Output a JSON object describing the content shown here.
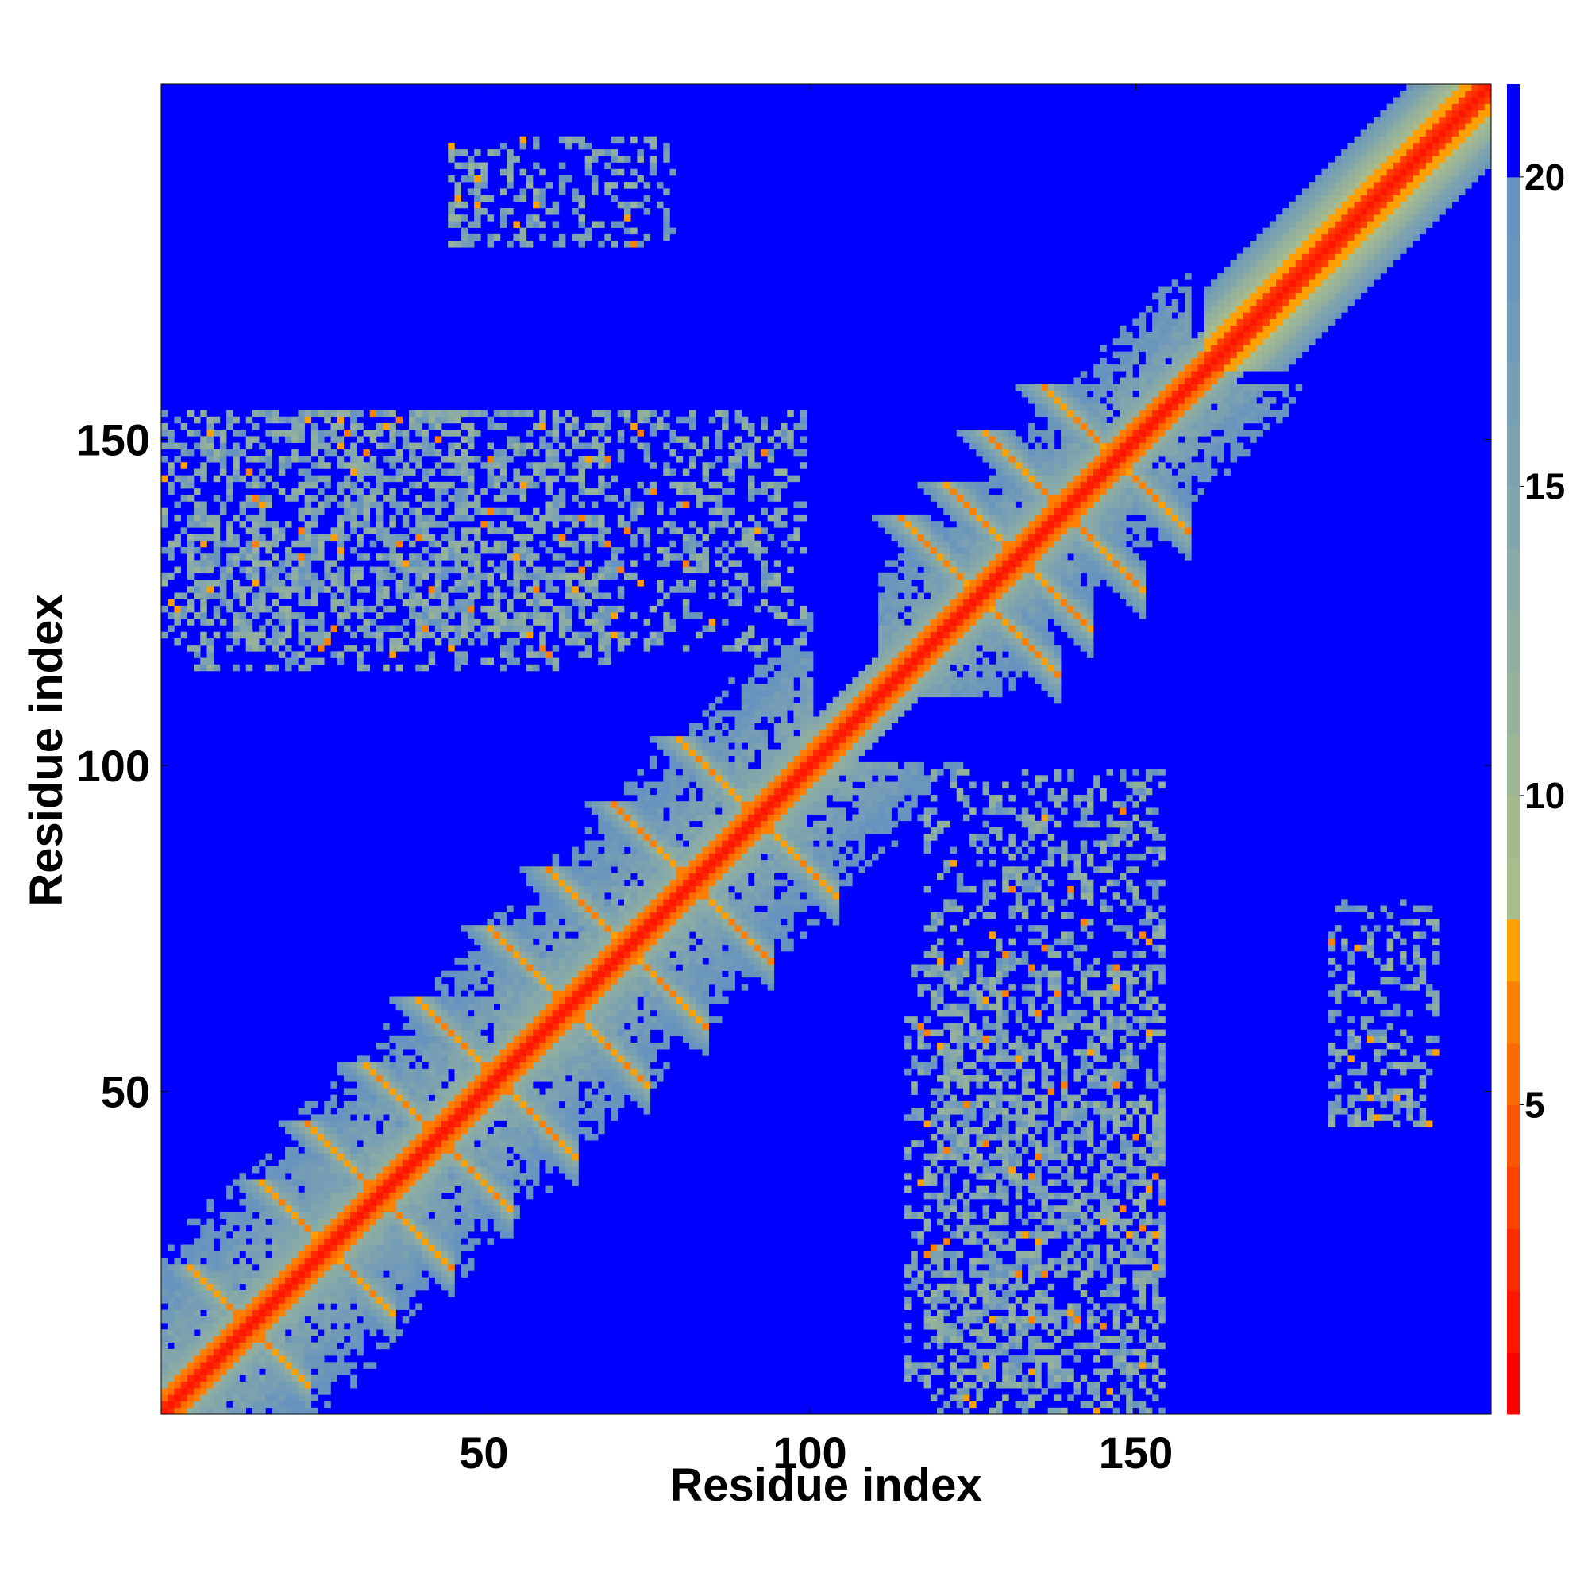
{
  "chart_data": {
    "type": "heatmap",
    "title": "",
    "xlabel": "Residue index",
    "ylabel": "Residue index",
    "n_residues": 204,
    "xlim": [
      1,
      204
    ],
    "ylim": [
      1,
      204
    ],
    "x_ticks": [
      50,
      100,
      150
    ],
    "y_ticks": [
      50,
      100,
      150
    ],
    "grid": false,
    "colorbar": {
      "range": [
        0,
        21.5
      ],
      "ticks": [
        5,
        10,
        15,
        20
      ],
      "levels": [
        {
          "max": 1.0,
          "color": "#ff0000"
        },
        {
          "max": 2.0,
          "color": "#ff1500"
        },
        {
          "max": 3.0,
          "color": "#ff2a00"
        },
        {
          "max": 4.0,
          "color": "#ff4000"
        },
        {
          "max": 5.0,
          "color": "#ff5500"
        },
        {
          "max": 6.0,
          "color": "#ff6a00"
        },
        {
          "max": 7.0,
          "color": "#ff8000"
        },
        {
          "max": 8.0,
          "color": "#ffa000"
        },
        {
          "max": 9.0,
          "color": "#a8bc8c"
        },
        {
          "max": 10.0,
          "color": "#a4b98e"
        },
        {
          "max": 11.0,
          "color": "#9db694"
        },
        {
          "max": 12.0,
          "color": "#96b29a"
        },
        {
          "max": 13.0,
          "color": "#90aea0"
        },
        {
          "max": 14.0,
          "color": "#89aaa6"
        },
        {
          "max": 15.0,
          "color": "#82a6ab"
        },
        {
          "max": 16.0,
          "color": "#7ca2b0"
        },
        {
          "max": 17.0,
          "color": "#769eb4"
        },
        {
          "max": 18.0,
          "color": "#709ab8"
        },
        {
          "max": 19.0,
          "color": "#6a96bc"
        },
        {
          "max": 20.0,
          "color": "#6693c0"
        },
        {
          "max": 21.5,
          "color": "#0000ff"
        }
      ]
    },
    "background_value": 21.5,
    "background_color": "#0000ff",
    "structure": {
      "diagonal": "distance near 3.8 along i=j, rising with |i-j|",
      "helix_band": [
        162,
        204
      ],
      "beta_sheet_region": [
        1,
        100
      ],
      "second_domain": [
        110,
        155
      ],
      "off_diagonal_contact_blocks": [
        {
          "i": [
            1,
            40
          ],
          "j": [
            118,
            155
          ]
        },
        {
          "i": [
            40,
            100
          ],
          "j": [
            118,
            155
          ]
        },
        {
          "i": [
            115,
            155
          ],
          "j": [
            5,
            70
          ]
        },
        {
          "i": [
            180,
            195
          ],
          "j": [
            45,
            50
          ]
        },
        {
          "i": [
            45,
            80
          ],
          "j": [
            180,
            197
          ]
        }
      ]
    }
  }
}
